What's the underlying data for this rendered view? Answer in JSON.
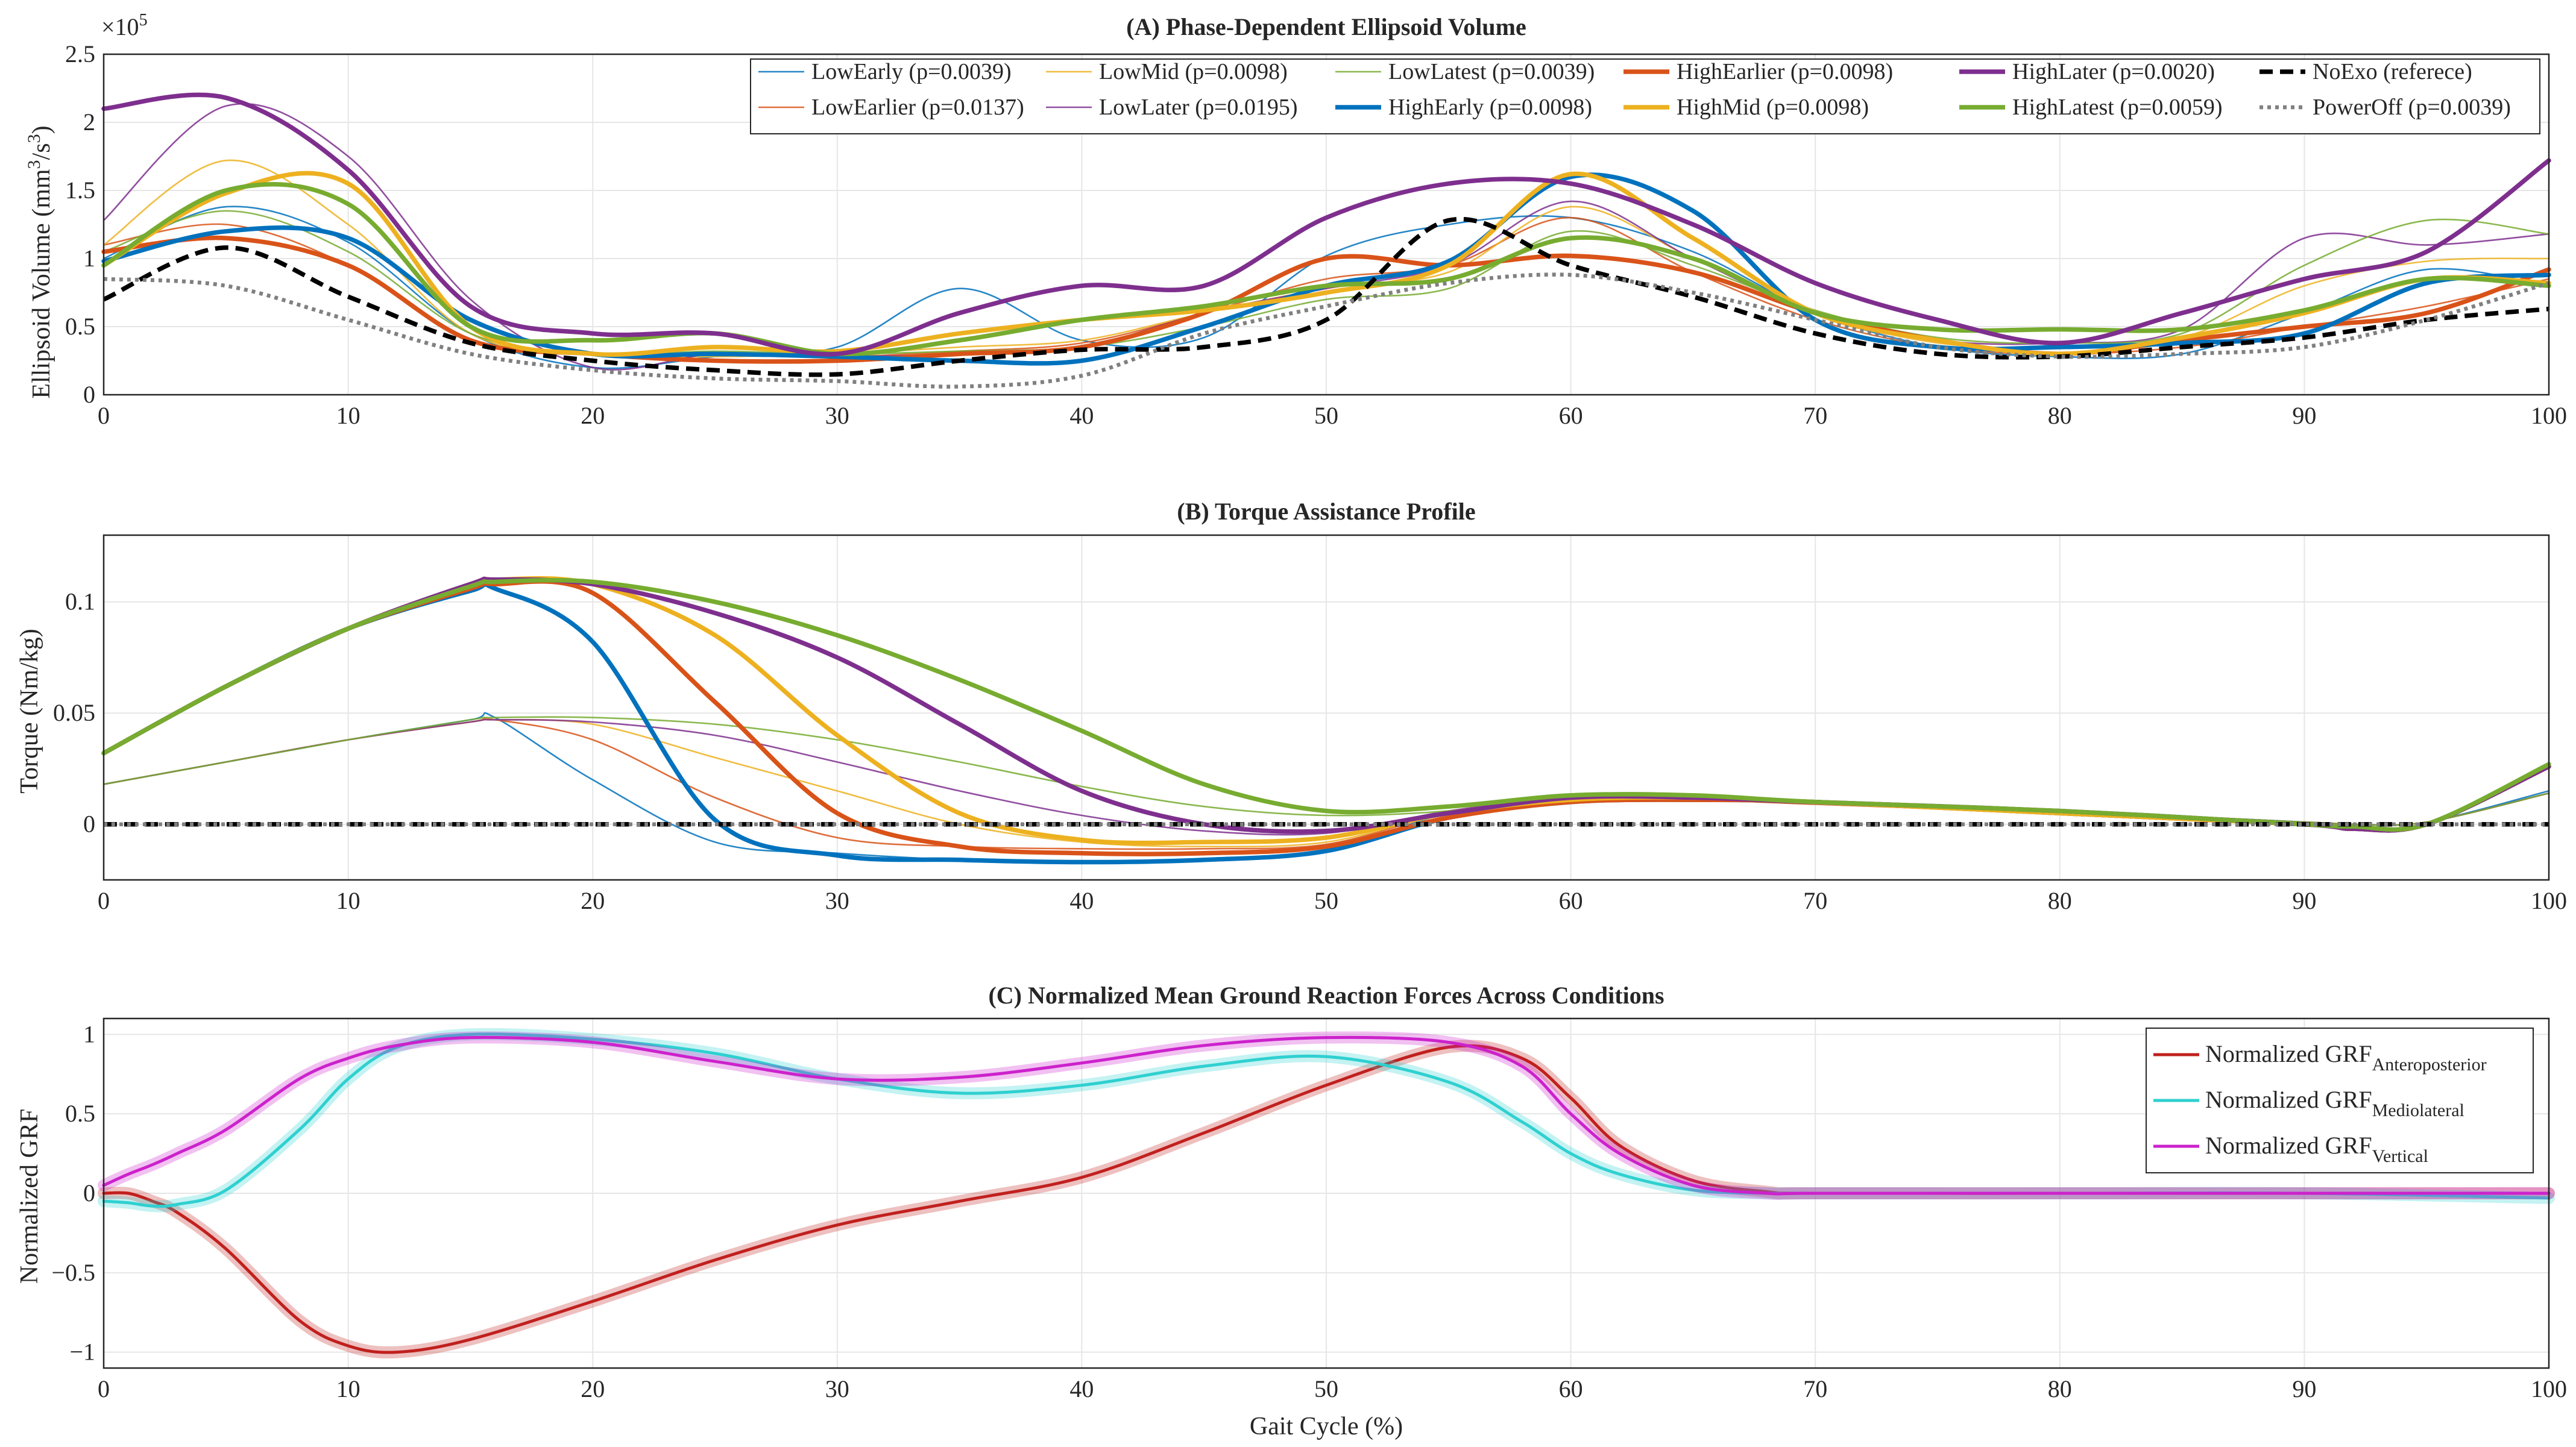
{
  "colors": {
    "LowEarly": "#0072bd",
    "LowEarlier": "#d95319",
    "LowMid": "#edb120",
    "LowLater": "#7e2f8e",
    "LowLatest": "#77ac30",
    "HighEarly": "#0072bd",
    "HighEarlier": "#d95319",
    "HighMid": "#edb120",
    "HighLater": "#7e2f8e",
    "HighLatest": "#77ac30",
    "NoExo": "#000000",
    "PowerOff": "#808080",
    "grf_ap": "#c0201e",
    "grf_ml": "#2fd0d0",
    "grf_v": "#cc22cc"
  },
  "xlabel": "Gait Cycle (%)",
  "chart_data": [
    {
      "type": "line",
      "title": "(A) Phase-Dependent Ellipsoid Volume",
      "xlabel": "",
      "ylabel": "Ellipsoid Volume (mm³/s³)",
      "ylabel_main": "Ellipsoid Volume (mm",
      "ylabel_sup": "3",
      "ylabel_mid": "/s",
      "ylabel_sup2": "3",
      "ylabel_end": ")",
      "exponent_label": "×10",
      "exponent_power": "5",
      "xlim": [
        0,
        100
      ],
      "ylim": [
        0,
        2.5
      ],
      "xticks": [
        "0",
        "10",
        "20",
        "30",
        "40",
        "50",
        "60",
        "70",
        "80",
        "90",
        "100"
      ],
      "yticks": [
        "0",
        "0.5",
        "1",
        "1.5",
        "2",
        "2.5"
      ],
      "x": [
        0,
        5,
        10,
        15,
        20,
        25,
        30,
        35,
        40,
        45,
        50,
        55,
        60,
        65,
        70,
        75,
        80,
        85,
        90,
        95,
        100
      ],
      "series": [
        {
          "name": "LowEarly (p=0.0039)",
          "key": "LowEarly",
          "style": "thin",
          "values": [
            1.0,
            1.38,
            1.12,
            0.45,
            0.2,
            0.28,
            0.35,
            0.78,
            0.4,
            0.42,
            1.02,
            1.25,
            1.3,
            1.05,
            0.6,
            0.35,
            0.28,
            0.3,
            0.6,
            0.92,
            0.8
          ]
        },
        {
          "name": "LowEarlier (p=0.0137)",
          "key": "LowEarlier",
          "style": "thin",
          "values": [
            1.1,
            1.25,
            0.95,
            0.4,
            0.3,
            0.3,
            0.28,
            0.32,
            0.38,
            0.6,
            0.85,
            0.95,
            1.3,
            0.9,
            0.55,
            0.35,
            0.3,
            0.35,
            0.5,
            0.65,
            0.85
          ]
        },
        {
          "name": "LowMid (p=0.0098)",
          "key": "LowMid",
          "style": "thin",
          "values": [
            1.1,
            1.72,
            1.25,
            0.45,
            0.3,
            0.28,
            0.3,
            0.35,
            0.4,
            0.6,
            0.78,
            0.9,
            1.38,
            1.0,
            0.6,
            0.38,
            0.35,
            0.42,
            0.8,
            0.98,
            1.0
          ]
        },
        {
          "name": "LowLater (p=0.0195)",
          "key": "LowLater",
          "style": "thin",
          "values": [
            1.28,
            2.12,
            1.75,
            0.7,
            0.2,
            0.3,
            0.28,
            0.3,
            0.35,
            0.6,
            0.78,
            0.95,
            1.42,
            1.0,
            0.6,
            0.4,
            0.38,
            0.48,
            1.15,
            1.1,
            1.18
          ]
        },
        {
          "name": "LowLatest (p=0.0039)",
          "key": "LowLatest",
          "style": "thin",
          "values": [
            1.05,
            1.35,
            1.05,
            0.45,
            0.3,
            0.32,
            0.3,
            0.32,
            0.35,
            0.5,
            0.7,
            0.78,
            1.2,
            0.95,
            0.62,
            0.42,
            0.38,
            0.45,
            0.95,
            1.28,
            1.18
          ]
        },
        {
          "name": "HighEarly (p=0.0098)",
          "key": "HighEarly",
          "style": "thick",
          "values": [
            0.98,
            1.2,
            1.15,
            0.55,
            0.3,
            0.3,
            0.28,
            0.25,
            0.25,
            0.5,
            0.8,
            0.98,
            1.6,
            1.35,
            0.55,
            0.35,
            0.35,
            0.38,
            0.45,
            0.82,
            0.88
          ]
        },
        {
          "name": "HighEarlier (p=0.0098)",
          "key": "HighEarlier",
          "style": "thick",
          "values": [
            1.05,
            1.15,
            0.95,
            0.4,
            0.3,
            0.25,
            0.25,
            0.3,
            0.35,
            0.6,
            1.0,
            0.95,
            1.02,
            0.9,
            0.6,
            0.4,
            0.3,
            0.4,
            0.5,
            0.6,
            0.92
          ]
        },
        {
          "name": "HighMid (p=0.0098)",
          "key": "HighMid",
          "style": "thick",
          "values": [
            0.95,
            1.48,
            1.55,
            0.5,
            0.3,
            0.35,
            0.32,
            0.45,
            0.55,
            0.62,
            0.75,
            0.95,
            1.62,
            1.15,
            0.6,
            0.4,
            0.3,
            0.42,
            0.6,
            0.85,
            0.82
          ]
        },
        {
          "name": "HighLater (p=0.0020)",
          "key": "HighLater",
          "style": "thick",
          "values": [
            2.1,
            2.18,
            1.65,
            0.65,
            0.45,
            0.45,
            0.3,
            0.6,
            0.8,
            0.8,
            1.3,
            1.55,
            1.55,
            1.25,
            0.82,
            0.55,
            0.38,
            0.6,
            0.85,
            1.05,
            1.72
          ]
        },
        {
          "name": "HighLatest (p=0.0059)",
          "key": "HighLatest",
          "style": "thick",
          "values": [
            0.95,
            1.5,
            1.4,
            0.5,
            0.4,
            0.45,
            0.3,
            0.4,
            0.55,
            0.65,
            0.8,
            0.85,
            1.15,
            1.0,
            0.6,
            0.48,
            0.48,
            0.48,
            0.62,
            0.85,
            0.8
          ]
        },
        {
          "name": "NoExo (referece)",
          "key": "NoExo",
          "style": "dash",
          "values": [
            0.7,
            1.08,
            0.72,
            0.38,
            0.25,
            0.18,
            0.15,
            0.25,
            0.33,
            0.35,
            0.55,
            1.28,
            0.95,
            0.72,
            0.45,
            0.3,
            0.28,
            0.35,
            0.42,
            0.55,
            0.63
          ]
        },
        {
          "name": "PowerOff (p=0.0039)",
          "key": "PowerOff",
          "style": "dot",
          "values": [
            0.85,
            0.8,
            0.55,
            0.3,
            0.18,
            0.12,
            0.1,
            0.06,
            0.14,
            0.45,
            0.65,
            0.82,
            0.88,
            0.75,
            0.55,
            0.35,
            0.28,
            0.3,
            0.35,
            0.55,
            0.82
          ]
        }
      ]
    },
    {
      "type": "line",
      "title": "(B) Torque Assistance Profile",
      "xlabel": "",
      "ylabel": "Torque (Nm/kg)",
      "xlim": [
        0,
        100
      ],
      "ylim": [
        -0.025,
        0.13
      ],
      "xticks": [
        "0",
        "10",
        "20",
        "30",
        "40",
        "50",
        "60",
        "70",
        "80",
        "90",
        "100"
      ],
      "yticks": [
        "0",
        "0.05",
        "0.1"
      ],
      "x": [
        0,
        5,
        10,
        15,
        16,
        20,
        25,
        30,
        35,
        40,
        45,
        50,
        55,
        60,
        65,
        70,
        80,
        90,
        92,
        95,
        100
      ],
      "series": [
        {
          "name": "LowEarly",
          "key": "LowEarly",
          "style": "thin",
          "values": [
            0.018,
            0.028,
            0.038,
            0.047,
            0.048,
            0.02,
            -0.008,
            -0.013,
            -0.016,
            -0.017,
            -0.016,
            -0.012,
            0.005,
            0.012,
            0.012,
            0.01,
            0.006,
            0.001,
            0.0,
            0.001,
            0.015
          ]
        },
        {
          "name": "LowEarlier",
          "key": "LowEarlier",
          "style": "thin",
          "values": [
            0.018,
            0.028,
            0.038,
            0.046,
            0.047,
            0.038,
            0.012,
            -0.006,
            -0.01,
            -0.011,
            -0.011,
            -0.009,
            0.005,
            0.011,
            0.011,
            0.009,
            0.005,
            0.001,
            0.0,
            0.001,
            0.014
          ]
        },
        {
          "name": "LowMid",
          "key": "LowMid",
          "style": "thin",
          "values": [
            0.018,
            0.028,
            0.038,
            0.046,
            0.047,
            0.045,
            0.03,
            0.015,
            0.0,
            -0.008,
            -0.01,
            -0.008,
            0.005,
            0.011,
            0.011,
            0.01,
            0.005,
            0.001,
            0.0,
            0.001,
            0.014
          ]
        },
        {
          "name": "LowLater",
          "key": "LowLater",
          "style": "thin",
          "values": [
            0.018,
            0.028,
            0.038,
            0.046,
            0.047,
            0.046,
            0.04,
            0.028,
            0.015,
            0.004,
            -0.003,
            -0.004,
            0.006,
            0.012,
            0.012,
            0.01,
            0.006,
            0.001,
            0.0,
            0.001,
            0.014
          ]
        },
        {
          "name": "LowLatest",
          "key": "LowLatest",
          "style": "thin",
          "values": [
            0.018,
            0.028,
            0.038,
            0.047,
            0.048,
            0.048,
            0.045,
            0.038,
            0.028,
            0.017,
            0.008,
            0.004,
            0.006,
            0.012,
            0.012,
            0.01,
            0.006,
            0.001,
            0.0,
            0.001,
            0.014
          ]
        },
        {
          "name": "HighEarly",
          "key": "HighEarly",
          "style": "thick",
          "values": [
            0.032,
            0.062,
            0.088,
            0.105,
            0.106,
            0.082,
            0.002,
            -0.014,
            -0.016,
            -0.017,
            -0.016,
            -0.012,
            0.003,
            0.01,
            0.011,
            0.01,
            0.005,
            0.0,
            -0.002,
            0.0,
            0.026
          ]
        },
        {
          "name": "HighEarlier",
          "key": "HighEarlier",
          "style": "thick",
          "values": [
            0.032,
            0.062,
            0.088,
            0.106,
            0.108,
            0.104,
            0.055,
            0.005,
            -0.01,
            -0.013,
            -0.013,
            -0.01,
            0.003,
            0.01,
            0.011,
            0.01,
            0.005,
            0.0,
            -0.002,
            0.0,
            0.026
          ]
        },
        {
          "name": "HighMid",
          "key": "HighMid",
          "style": "thick",
          "values": [
            0.032,
            0.062,
            0.088,
            0.108,
            0.11,
            0.108,
            0.085,
            0.04,
            0.005,
            -0.007,
            -0.008,
            -0.006,
            0.005,
            0.011,
            0.012,
            0.01,
            0.005,
            0.0,
            -0.002,
            0.0,
            0.026
          ]
        },
        {
          "name": "HighLater",
          "key": "HighLater",
          "style": "thick",
          "values": [
            0.032,
            0.062,
            0.088,
            0.108,
            0.11,
            0.108,
            0.095,
            0.075,
            0.045,
            0.015,
            0.0,
            -0.003,
            0.005,
            0.012,
            0.012,
            0.01,
            0.006,
            0.0,
            -0.002,
            0.0,
            0.026
          ]
        },
        {
          "name": "HighLatest",
          "key": "HighLatest",
          "style": "thick",
          "values": [
            0.032,
            0.062,
            0.088,
            0.107,
            0.109,
            0.109,
            0.1,
            0.085,
            0.065,
            0.042,
            0.018,
            0.006,
            0.008,
            0.013,
            0.013,
            0.01,
            0.006,
            0.0,
            -0.001,
            0.0,
            0.027
          ]
        },
        {
          "name": "NoExo",
          "key": "NoExo",
          "style": "dash",
          "values": [
            0,
            0,
            0,
            0,
            0,
            0,
            0,
            0,
            0,
            0,
            0,
            0,
            0,
            0,
            0,
            0,
            0,
            0,
            0,
            0,
            0
          ]
        },
        {
          "name": "PowerOff",
          "key": "PowerOff",
          "style": "dot",
          "values": [
            0,
            0,
            0,
            0,
            0,
            0,
            0,
            0,
            0,
            0,
            0,
            0,
            0,
            0,
            0,
            0,
            0,
            0,
            0,
            0,
            0
          ]
        }
      ]
    },
    {
      "type": "line",
      "title": "(C) Normalized Mean Ground Reaction Forces Across Conditions",
      "xlabel": "Gait Cycle (%)",
      "ylabel": "Normalized GRF",
      "xlim": [
        0,
        100
      ],
      "ylim": [
        -1.1,
        1.1
      ],
      "xticks": [
        "0",
        "10",
        "20",
        "30",
        "40",
        "50",
        "60",
        "70",
        "80",
        "90",
        "100"
      ],
      "yticks": [
        "-1",
        "-0.5",
        "0",
        "0.5",
        "1"
      ],
      "x": [
        0,
        1,
        2,
        3,
        5,
        8,
        10,
        12,
        15,
        20,
        25,
        30,
        35,
        40,
        45,
        50,
        55,
        58,
        60,
        62,
        65,
        68,
        70,
        80,
        90,
        100
      ],
      "series": [
        {
          "name": "Normalized GRF",
          "sub": "Anteroposterior",
          "key": "grf_ap",
          "style": "grf",
          "values": [
            0.0,
            0.0,
            -0.05,
            -0.12,
            -0.35,
            -0.8,
            -0.96,
            -1.0,
            -0.92,
            -0.68,
            -0.42,
            -0.2,
            -0.05,
            0.1,
            0.38,
            0.68,
            0.92,
            0.85,
            0.6,
            0.3,
            0.08,
            0.01,
            0.0,
            0.0,
            0.0,
            0.0
          ]
        },
        {
          "name": "Normalized GRF",
          "sub": "Mediolateral",
          "key": "grf_ml",
          "style": "grf",
          "values": [
            -0.05,
            -0.06,
            -0.08,
            -0.07,
            0.02,
            0.4,
            0.72,
            0.92,
            1.0,
            0.97,
            0.88,
            0.72,
            0.63,
            0.68,
            0.8,
            0.86,
            0.7,
            0.45,
            0.25,
            0.12,
            0.02,
            0.0,
            0.0,
            0.0,
            0.0,
            -0.03
          ]
        },
        {
          "name": "Normalized GRF",
          "sub": "Vertical",
          "key": "grf_v",
          "style": "grf",
          "values": [
            0.05,
            0.12,
            0.18,
            0.25,
            0.4,
            0.72,
            0.85,
            0.93,
            0.98,
            0.95,
            0.83,
            0.72,
            0.73,
            0.82,
            0.93,
            0.98,
            0.95,
            0.8,
            0.5,
            0.25,
            0.05,
            0.0,
            0.0,
            0.0,
            0.0,
            0.0
          ]
        }
      ]
    }
  ]
}
